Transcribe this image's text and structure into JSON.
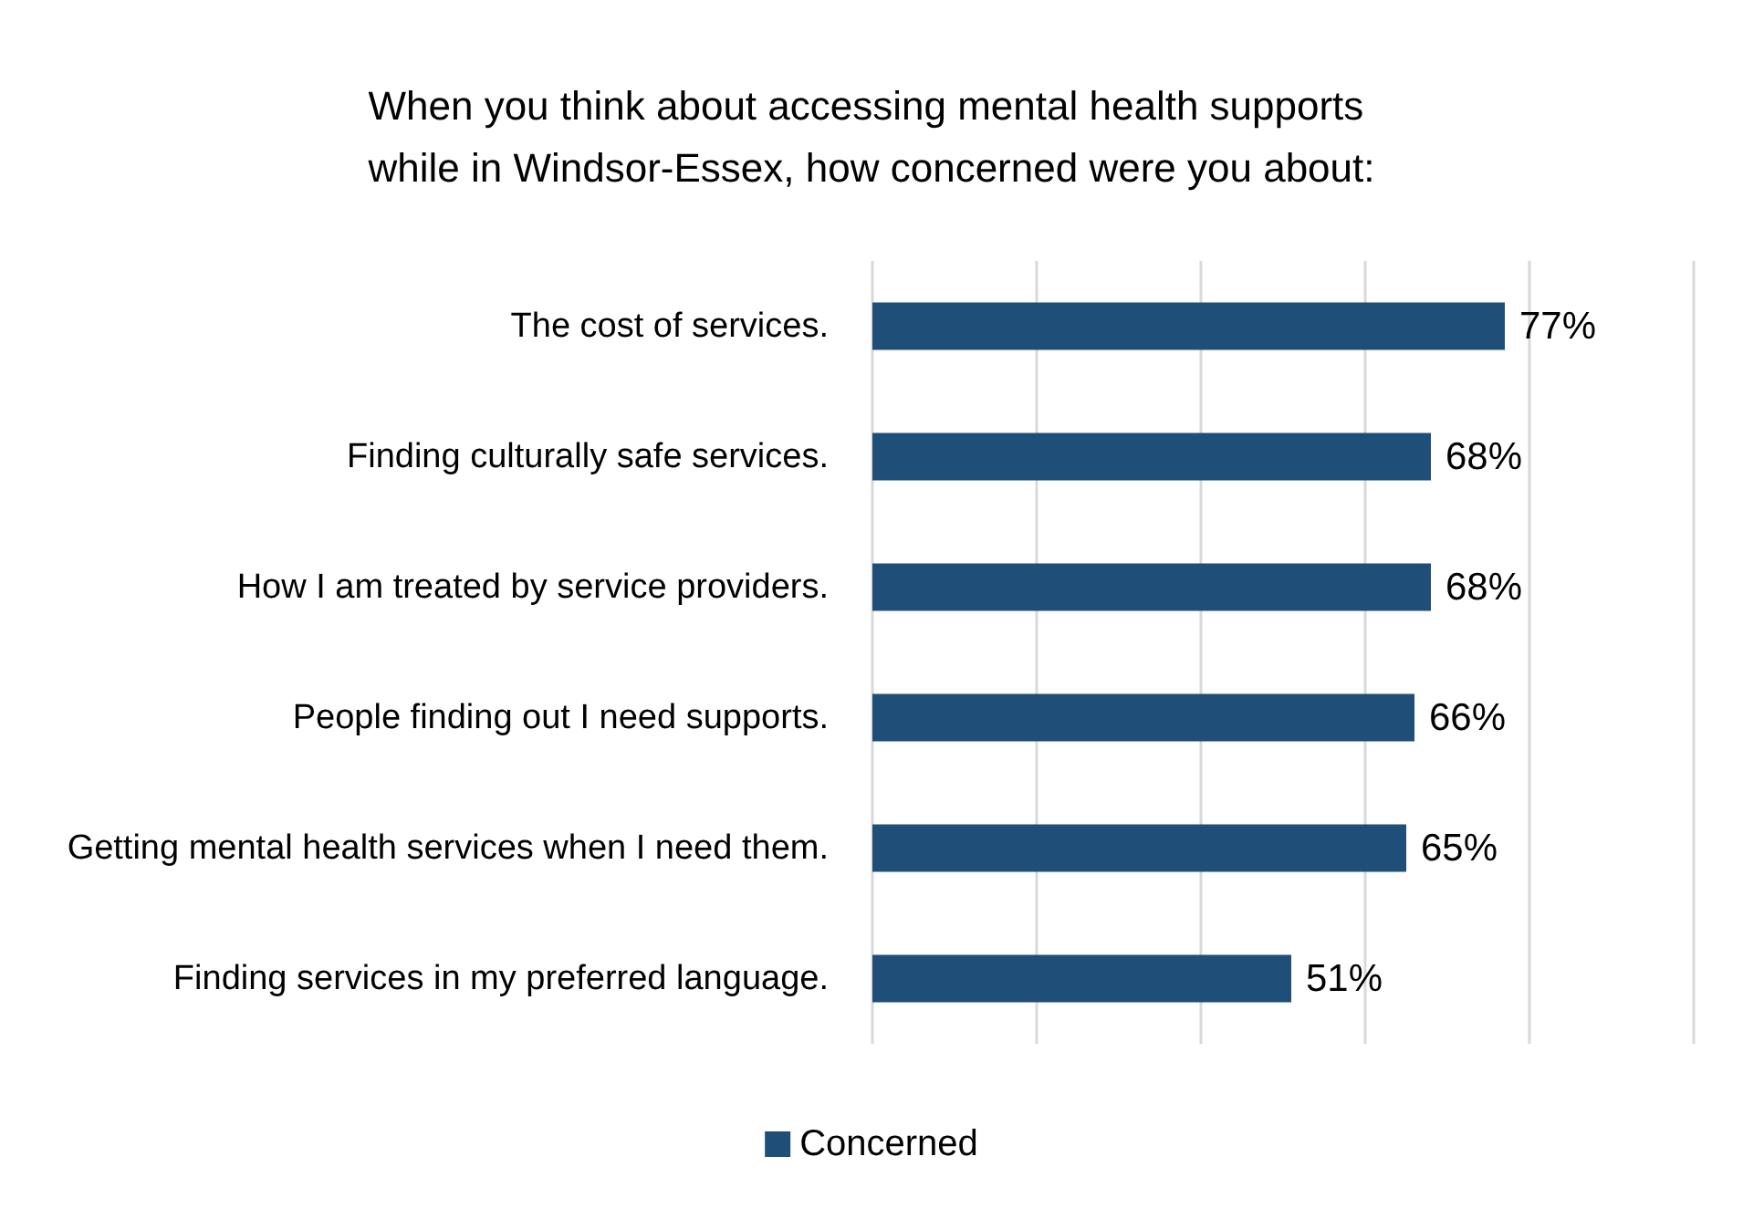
{
  "chart_data": {
    "type": "bar",
    "orientation": "horizontal",
    "title": "When you think about accessing mental health supports while in Windsor-Essex, how concerned were you about:",
    "categories": [
      "The cost of services.",
      "Finding culturally safe services.",
      "How I am treated by service providers.",
      "People finding out I need supports.",
      "Getting mental health services when I need them.",
      "Finding services in my preferred language."
    ],
    "series": [
      {
        "name": "Concerned",
        "color": "#1f4e79",
        "values": [
          77,
          68,
          68,
          66,
          65,
          51
        ],
        "value_labels": [
          "77%",
          "68%",
          "68%",
          "66%",
          "65%",
          "51%"
        ]
      }
    ],
    "xlim": [
      0,
      100
    ],
    "xticks": [
      {
        "value": 0,
        "label": null
      },
      {
        "value": 20,
        "label": null
      },
      {
        "value": 40,
        "label": null
      },
      {
        "value": 60,
        "label": null
      },
      {
        "value": 80,
        "label": null
      },
      {
        "value": 100,
        "label": null
      }
    ],
    "tick_labels": "y",
    "grid": "x",
    "legend": "bottom"
  }
}
